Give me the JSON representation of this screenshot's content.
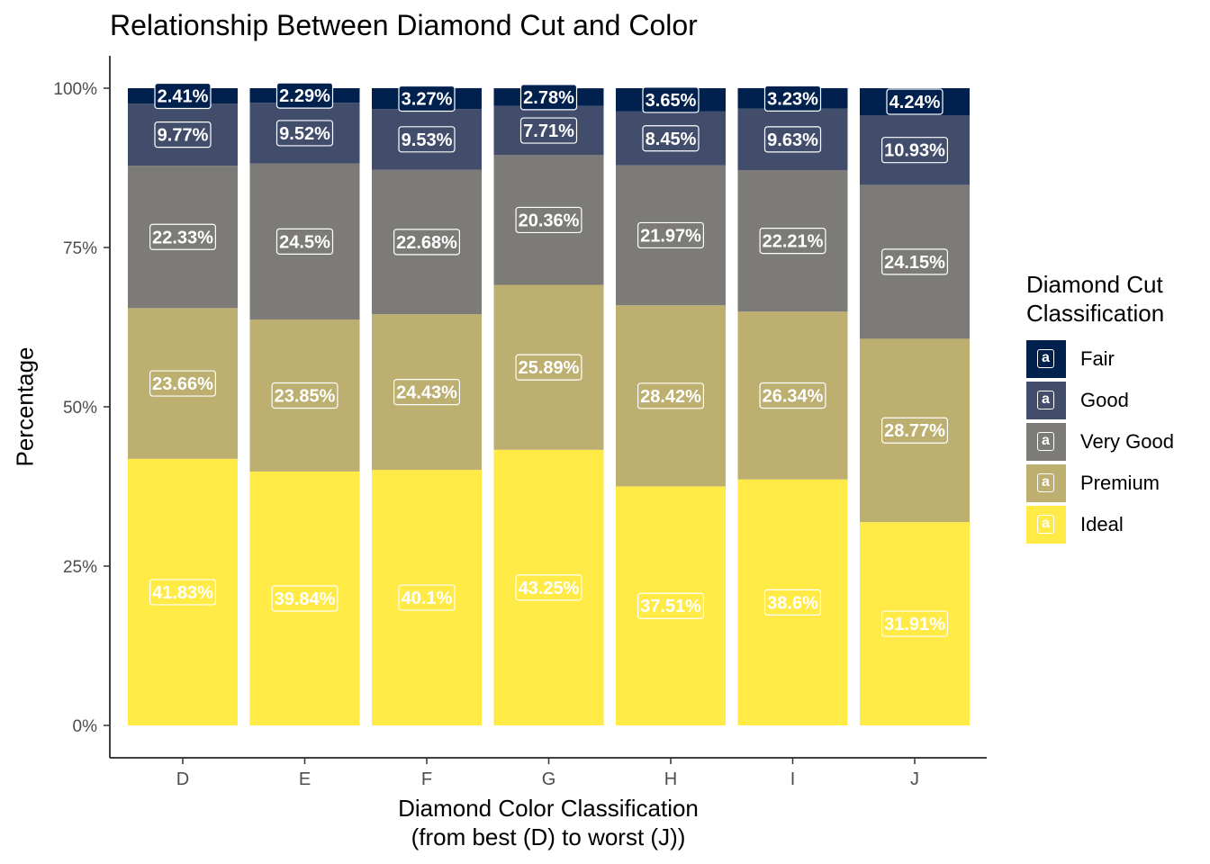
{
  "chart_data": {
    "type": "bar",
    "stacked": true,
    "title": "Relationship Between Diamond Cut and Color",
    "xlabel_line1": "Diamond Color Classification",
    "xlabel_line2": "(from best (D) to worst (J))",
    "ylabel": "Percentage",
    "categories": [
      "D",
      "E",
      "F",
      "G",
      "H",
      "I",
      "J"
    ],
    "ylim": [
      0,
      100
    ],
    "yticks": [
      "0%",
      "25%",
      "50%",
      "75%",
      "100%"
    ],
    "series": [
      {
        "name": "Ideal",
        "color": "#FFEA46",
        "values": [
          41.83,
          39.84,
          40.1,
          43.25,
          37.51,
          38.6,
          31.91
        ],
        "labels": [
          "41.83%",
          "39.84%",
          "40.1%",
          "43.25%",
          "37.51%",
          "38.6%",
          "31.91%"
        ]
      },
      {
        "name": "Premium",
        "color": "#BCAF6F",
        "values": [
          23.66,
          23.85,
          24.43,
          25.89,
          28.42,
          26.34,
          28.77
        ],
        "labels": [
          "23.66%",
          "23.85%",
          "24.43%",
          "25.89%",
          "28.42%",
          "26.34%",
          "28.77%"
        ]
      },
      {
        "name": "Very Good",
        "color": "#7C7B78",
        "values": [
          22.33,
          24.5,
          22.68,
          20.36,
          21.97,
          22.21,
          24.15
        ],
        "labels": [
          "22.33%",
          "24.5%",
          "22.68%",
          "20.36%",
          "21.97%",
          "22.21%",
          "24.15%"
        ]
      },
      {
        "name": "Good",
        "color": "#414D6B",
        "values": [
          9.77,
          9.52,
          9.53,
          7.71,
          8.45,
          9.63,
          10.93
        ],
        "labels": [
          "9.77%",
          "9.52%",
          "9.53%",
          "7.71%",
          "8.45%",
          "9.63%",
          "10.93%"
        ]
      },
      {
        "name": "Fair",
        "color": "#00204D",
        "values": [
          2.41,
          2.29,
          3.27,
          2.78,
          3.65,
          3.23,
          4.24
        ],
        "labels": [
          "2.41%",
          "2.29%",
          "3.27%",
          "2.78%",
          "3.65%",
          "3.23%",
          "4.24%"
        ]
      }
    ],
    "legend": {
      "title_line1": "Diamond Cut",
      "title_line2": "Classification",
      "position": "right",
      "key_glyph": "a",
      "order": [
        "Fair",
        "Good",
        "Very Good",
        "Premium",
        "Ideal"
      ]
    }
  }
}
